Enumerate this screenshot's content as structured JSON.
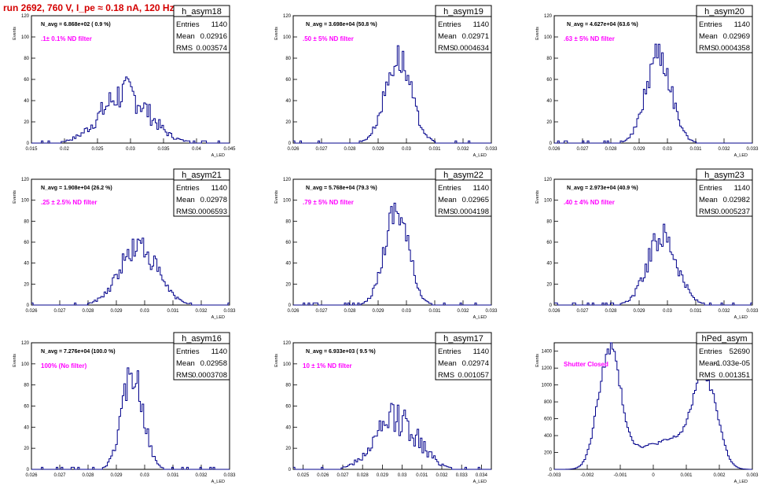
{
  "run_title": "run 2692,   760 V, I_pe ≈ 0.18 nA, 120 Hz",
  "stat_labels": {
    "entries": "Entries",
    "mean": "Mean",
    "rms": "RMS"
  },
  "colors": {
    "histogram": "#00008b",
    "note": "#ff00ff",
    "title": "#d40000",
    "frame": "#000000"
  },
  "chart_data": [
    {
      "type": "bar",
      "name": "h_asym18",
      "ylabel": "Events",
      "xlabel": "A_LED",
      "xlim": [
        0.015,
        0.045
      ],
      "ylim": [
        0,
        120
      ],
      "xticks": [
        0.015,
        0.02,
        0.025,
        0.03,
        0.035,
        0.04,
        0.045
      ],
      "xtick_labels": [
        "0.015",
        "0.02",
        "0.025",
        "0.03",
        "0.035",
        "0.04",
        "0.045"
      ],
      "yticks": [
        0,
        20,
        40,
        60,
        80,
        100,
        120
      ],
      "navg": "N_avg = 6.868e+02 ( 0.9 %)",
      "note": ".1± 0.1% ND filter",
      "entries": "1140",
      "mean": "0.02916",
      "rms": "0.003574",
      "center": 0.02916,
      "sigma": 0.0036,
      "peak": 47,
      "noise": 0.35
    },
    {
      "type": "bar",
      "name": "h_asym19",
      "ylabel": "Events",
      "xlabel": "A_LED",
      "xlim": [
        0.026,
        0.033
      ],
      "ylim": [
        0,
        120
      ],
      "xticks": [
        0.026,
        0.027,
        0.028,
        0.029,
        0.03,
        0.031,
        0.032,
        0.033
      ],
      "xtick_labels": [
        "0.026",
        "0.027",
        "0.028",
        "0.029",
        "0.03",
        "0.031",
        "0.032",
        "0.033"
      ],
      "yticks": [
        0,
        20,
        40,
        60,
        80,
        100,
        120
      ],
      "navg": "N_avg = 3.698e+04 (50.8 %)",
      "note": ".50 ± 5% ND filter",
      "entries": "1140",
      "mean": "0.02971",
      "rms": "0.0004634",
      "center": 0.02971,
      "sigma": 0.00046,
      "peak": 80,
      "noise": 0.2
    },
    {
      "type": "bar",
      "name": "h_asym20",
      "ylabel": "Events",
      "xlabel": "A_LED",
      "xlim": [
        0.026,
        0.033
      ],
      "ylim": [
        0,
        120
      ],
      "xticks": [
        0.026,
        0.027,
        0.028,
        0.029,
        0.03,
        0.031,
        0.032,
        0.033
      ],
      "xtick_labels": [
        "0.026",
        "0.027",
        "0.028",
        "0.029",
        "0.03",
        "0.031",
        "0.032",
        "0.033"
      ],
      "yticks": [
        0,
        20,
        40,
        60,
        80,
        100,
        120
      ],
      "navg": "N_avg = 4.627e+04 (63.6 %)",
      "note": ".63 ± 5% ND filter",
      "entries": "1140",
      "mean": "0.02969",
      "rms": "0.0004358",
      "center": 0.02969,
      "sigma": 0.00044,
      "peak": 86,
      "noise": 0.2
    },
    {
      "type": "bar",
      "name": "h_asym21",
      "ylabel": "Events",
      "xlabel": "A_LED",
      "xlim": [
        0.026,
        0.033
      ],
      "ylim": [
        0,
        120
      ],
      "xticks": [
        0.026,
        0.027,
        0.028,
        0.029,
        0.03,
        0.031,
        0.032,
        0.033
      ],
      "xtick_labels": [
        "0.026",
        "0.027",
        "0.028",
        "0.029",
        "0.03",
        "0.031",
        "0.032",
        "0.033"
      ],
      "yticks": [
        0,
        20,
        40,
        60,
        80,
        100,
        120
      ],
      "navg": "N_avg = 1.908e+04 (26.2 %)",
      "note": ".25 ± 2.5% ND filter",
      "entries": "1140",
      "mean": "0.02978",
      "rms": "0.0006593",
      "center": 0.02978,
      "sigma": 0.00066,
      "peak": 56,
      "noise": 0.25
    },
    {
      "type": "bar",
      "name": "h_asym22",
      "ylabel": "Events",
      "xlabel": "A_LED",
      "xlim": [
        0.026,
        0.033
      ],
      "ylim": [
        0,
        120
      ],
      "xticks": [
        0.026,
        0.027,
        0.028,
        0.029,
        0.03,
        0.031,
        0.032,
        0.033
      ],
      "xtick_labels": [
        "0.026",
        "0.027",
        "0.028",
        "0.029",
        "0.03",
        "0.031",
        "0.032",
        "0.033"
      ],
      "yticks": [
        0,
        20,
        40,
        60,
        80,
        100,
        120
      ],
      "navg": "N_avg = 5.768e+04 (79.3 %)",
      "note": ".79 ± 5% ND filter",
      "entries": "1140",
      "mean": "0.02965",
      "rms": "0.0004198",
      "center": 0.02965,
      "sigma": 0.00042,
      "peak": 92,
      "noise": 0.2
    },
    {
      "type": "bar",
      "name": "h_asym23",
      "ylabel": "Events",
      "xlabel": "A_LED",
      "xlim": [
        0.026,
        0.033
      ],
      "ylim": [
        0,
        120
      ],
      "xticks": [
        0.026,
        0.027,
        0.028,
        0.029,
        0.03,
        0.031,
        0.032,
        0.033
      ],
      "xtick_labels": [
        "0.026",
        "0.027",
        "0.028",
        "0.029",
        "0.03",
        "0.031",
        "0.032",
        "0.033"
      ],
      "yticks": [
        0,
        20,
        40,
        60,
        80,
        100,
        120
      ],
      "navg": "N_avg = 2.973e+04 (40.9 %)",
      "note": ".40 ± 4% ND filter",
      "entries": "1140",
      "mean": "0.02982",
      "rms": "0.0005237",
      "center": 0.02982,
      "sigma": 0.00052,
      "peak": 66,
      "noise": 0.22
    },
    {
      "type": "bar",
      "name": "h_asym16",
      "ylabel": "Events",
      "xlabel": "A_LED",
      "xlim": [
        0.026,
        0.033
      ],
      "ylim": [
        0,
        120
      ],
      "xticks": [
        0.026,
        0.027,
        0.028,
        0.029,
        0.03,
        0.031,
        0.032,
        0.033
      ],
      "xtick_labels": [
        "0.026",
        "0.027",
        "0.028",
        "0.029",
        "0.03",
        "0.031",
        "0.032",
        "0.033"
      ],
      "yticks": [
        0,
        20,
        40,
        60,
        80,
        100,
        120
      ],
      "navg": "N_avg = 7.276e+04 (100.0 %)",
      "note": "100% (No filter)",
      "entries": "1140",
      "mean": "0.02958",
      "rms": "0.0003708",
      "center": 0.02958,
      "sigma": 0.00037,
      "peak": 92,
      "noise": 0.2
    },
    {
      "type": "bar",
      "name": "h_asym17",
      "ylabel": "Events",
      "xlabel": "A_LED",
      "xlim": [
        0.0245,
        0.0345
      ],
      "ylim": [
        0,
        120
      ],
      "xticks": [
        0.025,
        0.026,
        0.027,
        0.028,
        0.029,
        0.03,
        0.031,
        0.032,
        0.033,
        0.034
      ],
      "xtick_labels": [
        "0.025",
        "0.026",
        "0.027",
        "0.028",
        "0.029",
        "0.03",
        "0.031",
        "0.032",
        "0.033",
        "0.034"
      ],
      "yticks": [
        0,
        20,
        40,
        60,
        80,
        100,
        120
      ],
      "navg": "N_avg = 6.933e+03 ( 9.5 %)",
      "note": "10 ± 1% ND filter",
      "entries": "1140",
      "mean": "0.02974",
      "rms": "0.001057",
      "center": 0.02974,
      "sigma": 0.00106,
      "peak": 48,
      "noise": 0.35
    },
    {
      "type": "bar",
      "name": "hPed_asym",
      "ylabel": "Events",
      "xlabel": "A_LED",
      "xlim": [
        -0.003,
        0.003
      ],
      "ylim": [
        0,
        1500
      ],
      "xticks": [
        -0.003,
        -0.002,
        -0.001,
        0,
        0.001,
        0.002,
        0.003
      ],
      "xtick_labels": [
        "-0.003",
        "-0.002",
        "-0.001",
        "0",
        "0.001",
        "0.002",
        "0.003"
      ],
      "yticks": [
        0,
        200,
        400,
        600,
        800,
        1000,
        1200,
        1400
      ],
      "navg": "",
      "note": "Shutter Closed",
      "entries": "52690",
      "mean": "-1.033e-05",
      "rms": "0.001351",
      "bimodal": true
    }
  ]
}
